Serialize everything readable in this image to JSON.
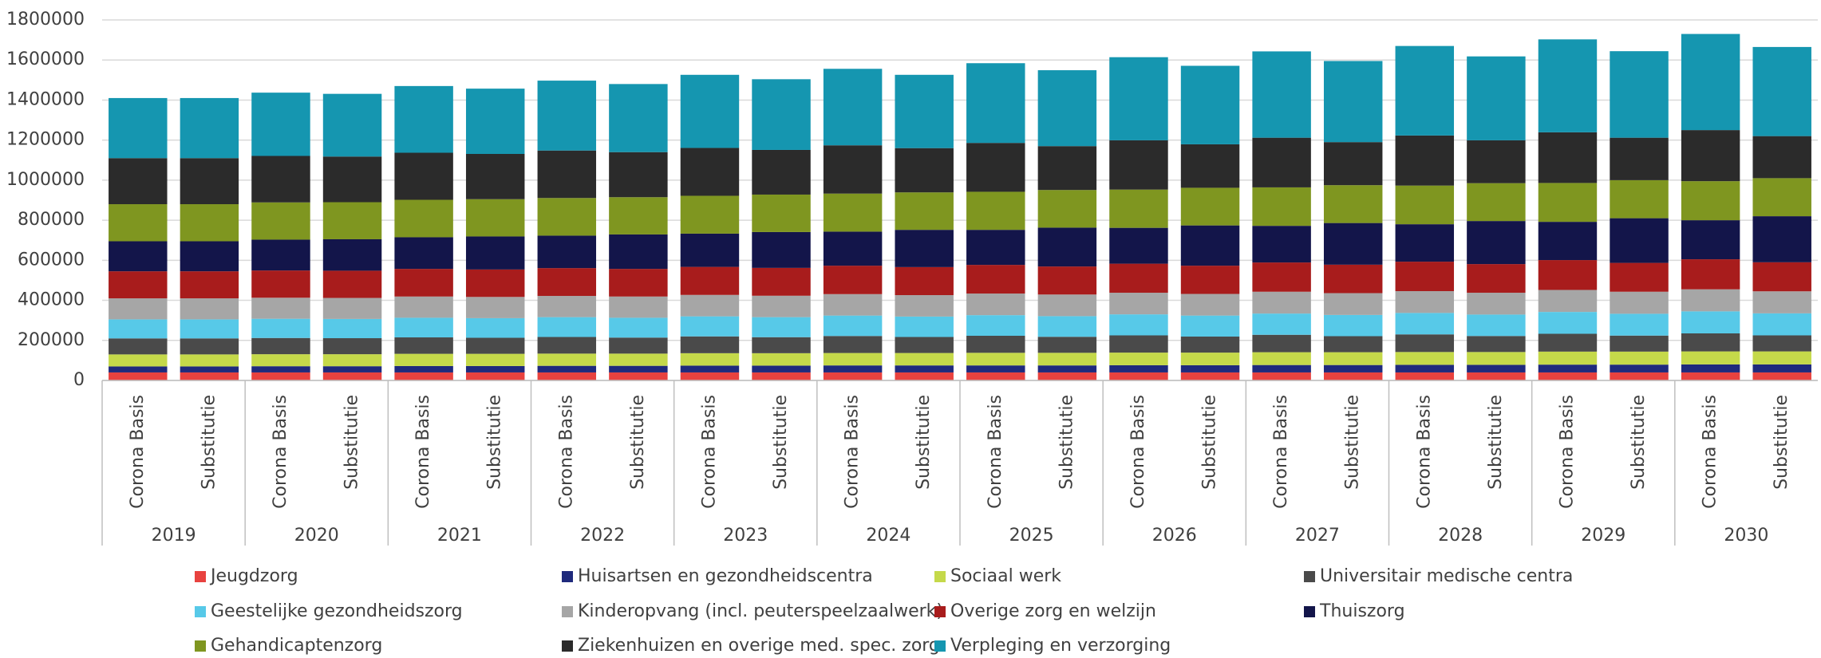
{
  "chart_data": {
    "type": "stacked_bar",
    "scenarios": [
      "Corona Basis",
      "Substitutie"
    ],
    "groups": [
      "2019",
      "2020",
      "2021",
      "2022",
      "2023",
      "2024",
      "2025",
      "2026",
      "2027",
      "2028",
      "2029",
      "2030"
    ],
    "ylim": [
      0,
      1800000
    ],
    "yticks": [
      0,
      200000,
      400000,
      600000,
      800000,
      1000000,
      1200000,
      1400000,
      1600000,
      1800000
    ],
    "grid": true,
    "legend": "bottom",
    "series": [
      {
        "name": "Jeugdzorg",
        "color": "#e8423f",
        "values": [
          40000,
          40000,
          40000,
          40000,
          40000,
          40000,
          40000,
          40000,
          40000,
          40000,
          40000,
          40000,
          40000,
          40000,
          40000,
          40000,
          40000,
          40000,
          40000,
          40000,
          40000,
          40000,
          40000,
          40000
        ]
      },
      {
        "name": "Huisartsen en gezondheidscentra",
        "color": "#1f2a7c",
        "values": [
          30000,
          30000,
          31000,
          31000,
          32000,
          32000,
          33000,
          33000,
          34000,
          34000,
          35000,
          35000,
          35000,
          35000,
          36000,
          36000,
          37000,
          37000,
          38000,
          38000,
          39000,
          39000,
          40000,
          40000
        ]
      },
      {
        "name": "Sociaal werk",
        "color": "#c5d94a",
        "values": [
          60000,
          60000,
          60000,
          60000,
          61000,
          61000,
          61000,
          61000,
          62000,
          62000,
          62000,
          62000,
          63000,
          63000,
          63000,
          63000,
          64000,
          64000,
          64000,
          64000,
          65000,
          65000,
          65000,
          65000
        ]
      },
      {
        "name": "Universitair medische centra",
        "color": "#4a4a4a",
        "values": [
          80000,
          80000,
          81000,
          80000,
          82000,
          80000,
          83000,
          80000,
          84000,
          80000,
          85000,
          80000,
          85000,
          80000,
          86000,
          80000,
          87000,
          80000,
          88000,
          80000,
          89000,
          80000,
          90000,
          80000
        ]
      },
      {
        "name": "Geestelijke gezondheidszorg",
        "color": "#57c9e8",
        "values": [
          95000,
          95000,
          96000,
          96000,
          98000,
          98000,
          99000,
          99000,
          100000,
          100000,
          102000,
          102000,
          103000,
          103000,
          105000,
          105000,
          106000,
          106000,
          107000,
          107000,
          109000,
          109000,
          110000,
          110000
        ]
      },
      {
        "name": "Kinderopvang (incl. peuterspeelzaalwerk)",
        "color": "#a6a6a6",
        "values": [
          105000,
          105000,
          105000,
          105000,
          106000,
          106000,
          106000,
          106000,
          107000,
          107000,
          107000,
          107000,
          108000,
          108000,
          108000,
          108000,
          109000,
          109000,
          109000,
          109000,
          110000,
          110000,
          110000,
          110000
        ]
      },
      {
        "name": "Overige zorg en welzijn",
        "color": "#a81c1c",
        "values": [
          135000,
          135000,
          136000,
          136000,
          138000,
          137000,
          139000,
          138000,
          140000,
          139000,
          142000,
          140000,
          143000,
          140000,
          145000,
          141000,
          146000,
          142000,
          147000,
          143000,
          149000,
          144000,
          150000,
          145000
        ]
      },
      {
        "name": "Thuiszorg",
        "color": "#13154a",
        "values": [
          150000,
          150000,
          154000,
          157000,
          158000,
          165000,
          162000,
          172000,
          166000,
          179000,
          170000,
          186000,
          175000,
          194000,
          179000,
          201000,
          183000,
          208000,
          187000,
          215000,
          191000,
          223000,
          195000,
          230000
        ]
      },
      {
        "name": "Gehandicaptenzorg",
        "color": "#7f9620",
        "values": [
          185000,
          185000,
          186000,
          185000,
          187000,
          186000,
          188000,
          186000,
          189000,
          187000,
          190000,
          187000,
          190000,
          188000,
          191000,
          188000,
          192000,
          189000,
          193000,
          189000,
          194000,
          190000,
          195000,
          190000
        ]
      },
      {
        "name": "Ziekenhuizen en overige med. spec. zorg",
        "color": "#2b2b2b",
        "values": [
          230000,
          230000,
          232000,
          228000,
          235000,
          226000,
          237000,
          225000,
          239000,
          223000,
          241000,
          221000,
          244000,
          219000,
          246000,
          217000,
          248000,
          215000,
          250000,
          214000,
          253000,
          212000,
          255000,
          210000
        ]
      },
      {
        "name": "Verpleging en verzorging",
        "color": "#1596b0",
        "values": [
          300000,
          300000,
          316000,
          313000,
          333000,
          326000,
          349000,
          340000,
          365000,
          353000,
          382000,
          366000,
          398000,
          379000,
          415000,
          392000,
          431000,
          405000,
          447000,
          419000,
          464000,
          432000,
          480000,
          445000
        ]
      }
    ]
  }
}
